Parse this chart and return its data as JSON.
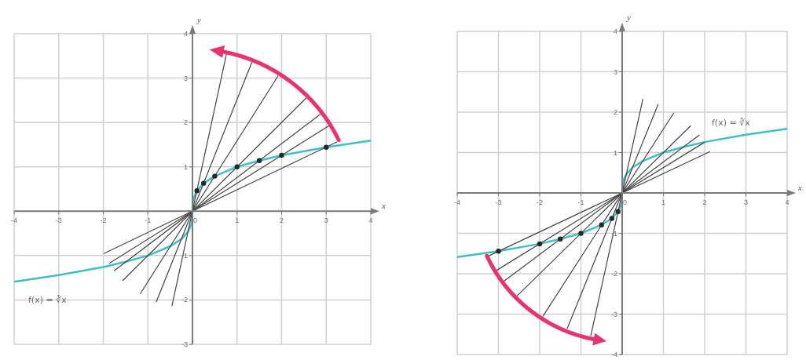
{
  "chart_data": [
    {
      "type": "line",
      "xlabel": "x",
      "ylabel": "y",
      "xlim": [
        -4,
        4
      ],
      "ylim": [
        -3,
        4
      ],
      "xticks": [
        -4,
        -3,
        -2,
        -1,
        0,
        1,
        2,
        3,
        4
      ],
      "yticks": [
        -3,
        -2,
        -1,
        {
          "value": 0,
          "label": null
        },
        1,
        2,
        3,
        4
      ],
      "grid": true,
      "marker": "none",
      "annotations": [
        "f(x) = ∛x"
      ],
      "series": [
        {
          "color": "#3fbfc8",
          "x": [
            -4,
            -3,
            -2,
            -1.5,
            -1,
            -0.5,
            -0.25,
            -0.1,
            -0.03,
            -0.01,
            0,
            0.01,
            0.03,
            0.1,
            0.25,
            0.5,
            1,
            1.5,
            2,
            3,
            4
          ],
          "values": [
            -1.59,
            -1.44,
            -1.26,
            -1.14,
            -1,
            -0.79,
            -0.63,
            -0.46,
            -0.31,
            -0.22,
            0,
            0.22,
            0.31,
            0.46,
            0.63,
            0.79,
            1,
            1.14,
            1.26,
            1.44,
            1.59
          ]
        },
        {
          "color": "#444444",
          "x": [
            -0.46,
            0.76
          ],
          "values": [
            -2.13,
            3.53
          ]
        },
        {
          "color": "#444444",
          "x": [
            -0.81,
            1.33
          ],
          "values": [
            -2.04,
            3.35
          ]
        },
        {
          "color": "#444444",
          "x": [
            -1.17,
            1.92
          ],
          "values": [
            -1.86,
            3.05
          ]
        },
        {
          "color": "#444444",
          "x": [
            -1.56,
            2.55
          ],
          "values": [
            -1.56,
            2.55
          ]
        },
        {
          "color": "#444444",
          "x": [
            -1.75,
            2.86
          ],
          "values": [
            -1.34,
            2.18
          ]
        },
        {
          "color": "#444444",
          "x": [
            -1.86,
            3.05
          ],
          "values": [
            -1.17,
            1.92
          ]
        },
        {
          "color": "#444444",
          "x": [
            -1.98,
            3.24
          ],
          "values": [
            -0.95,
            1.56
          ]
        },
        {
          "type": "scatter",
          "color": "#1f2b24",
          "marker": "circle",
          "x": [
            0.1,
            0.25,
            0.5,
            1,
            1.5,
            2,
            3
          ],
          "values": [
            0.46,
            0.63,
            0.79,
            1,
            1.14,
            1.26,
            1.44
          ]
        }
      ]
    },
    {
      "type": "line",
      "xlabel": "x",
      "ylabel": "y",
      "xlim": [
        -4,
        4
      ],
      "ylim": [
        -4,
        4
      ],
      "xticks": [
        -4,
        -3,
        -2,
        -1,
        0,
        1,
        2,
        3,
        4
      ],
      "yticks": [
        -4,
        -3,
        -2,
        -1,
        {
          "value": 0,
          "label": null
        },
        1,
        2,
        3,
        4
      ],
      "grid": true,
      "marker": "none",
      "annotations": [
        "f(x) = ∛x"
      ],
      "series": [
        {
          "color": "#3fbfc8",
          "x": [
            -4,
            -3,
            -2,
            -1.5,
            -1,
            -0.5,
            -0.25,
            -0.1,
            -0.03,
            -0.01,
            0,
            0.01,
            0.03,
            0.1,
            0.25,
            0.5,
            1,
            1.5,
            2,
            3,
            4
          ],
          "values": [
            -1.59,
            -1.44,
            -1.26,
            -1.14,
            -1,
            -0.79,
            -0.63,
            -0.46,
            -0.31,
            -0.22,
            0,
            0.22,
            0.31,
            0.46,
            0.63,
            0.79,
            1,
            1.14,
            1.26,
            1.44,
            1.59
          ]
        },
        {
          "color": "#444444",
          "x": [
            -0.76,
            0.5
          ],
          "values": [
            -3.53,
            2.32
          ]
        },
        {
          "color": "#444444",
          "x": [
            -1.33,
            0.87
          ],
          "values": [
            -3.35,
            2.19
          ]
        },
        {
          "color": "#444444",
          "x": [
            -1.92,
            1.25
          ],
          "values": [
            -3.05,
            1.98
          ]
        },
        {
          "color": "#444444",
          "x": [
            -2.55,
            1.66
          ],
          "values": [
            -2.55,
            1.66
          ]
        },
        {
          "color": "#444444",
          "x": [
            -2.86,
            1.87
          ],
          "values": [
            -2.18,
            1.43
          ]
        },
        {
          "color": "#444444",
          "x": [
            -3.05,
            1.99
          ],
          "values": [
            -1.92,
            1.25
          ]
        },
        {
          "color": "#444444",
          "x": [
            -3.24,
            2.12
          ],
          "values": [
            -1.56,
            1.02
          ]
        },
        {
          "type": "scatter",
          "color": "#1f2b24",
          "marker": "circle",
          "x": [
            -3,
            -2,
            -1.5,
            -1,
            -0.5,
            -0.25,
            -0.1
          ],
          "values": [
            -1.44,
            -1.26,
            -1.14,
            -1,
            -0.79,
            -0.63,
            -0.46
          ]
        }
      ]
    }
  ]
}
